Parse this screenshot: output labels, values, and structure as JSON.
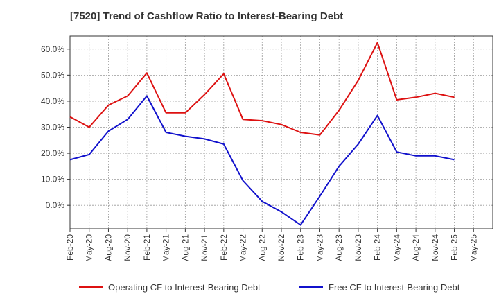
{
  "chart_data": {
    "type": "line",
    "title": "[7520]  Trend of Cashflow Ratio to Interest-Bearing Debt",
    "xlabel": "",
    "ylabel": "",
    "x": [
      "Feb-20",
      "May-20",
      "Aug-20",
      "Nov-20",
      "Feb-21",
      "May-21",
      "Aug-21",
      "Nov-21",
      "Feb-22",
      "May-22",
      "Aug-22",
      "Nov-22",
      "Feb-23",
      "May-23",
      "Aug-23",
      "Nov-23",
      "Feb-24",
      "May-24",
      "Aug-24",
      "Nov-24",
      "Feb-25"
    ],
    "x_ticks": [
      "Feb-20",
      "May-20",
      "Aug-20",
      "Nov-20",
      "Feb-21",
      "May-21",
      "Aug-21",
      "Nov-21",
      "Feb-22",
      "May-22",
      "Aug-22",
      "Nov-22",
      "Feb-23",
      "May-23",
      "Aug-23",
      "Nov-23",
      "Feb-24",
      "May-24",
      "Aug-24",
      "Nov-24",
      "Feb-25",
      "May-25"
    ],
    "ylim": [
      -9,
      65
    ],
    "y_ticks": [
      0,
      10,
      20,
      30,
      40,
      50,
      60
    ],
    "y_tick_labels": [
      "0.0%",
      "10.0%",
      "20.0%",
      "30.0%",
      "40.0%",
      "50.0%",
      "60.0%"
    ],
    "grid": true,
    "legend_position": "bottom",
    "series": [
      {
        "name": "Operating CF to Interest-Bearing Debt",
        "color": "#dd1111",
        "values": [
          34.0,
          30.0,
          38.5,
          42.0,
          50.8,
          35.5,
          35.5,
          42.5,
          50.5,
          33.0,
          32.5,
          31.0,
          28.0,
          27.0,
          36.5,
          48.0,
          62.5,
          40.5,
          41.5,
          43.0,
          41.5
        ]
      },
      {
        "name": "Free CF to Interest-Bearing Debt",
        "color": "#1111cc",
        "values": [
          17.5,
          19.5,
          28.5,
          33.0,
          42.0,
          28.0,
          26.5,
          25.5,
          23.5,
          9.5,
          1.5,
          -2.5,
          -7.5,
          3.5,
          15.0,
          23.5,
          34.5,
          20.5,
          19.0,
          19.0,
          17.5
        ]
      }
    ]
  }
}
